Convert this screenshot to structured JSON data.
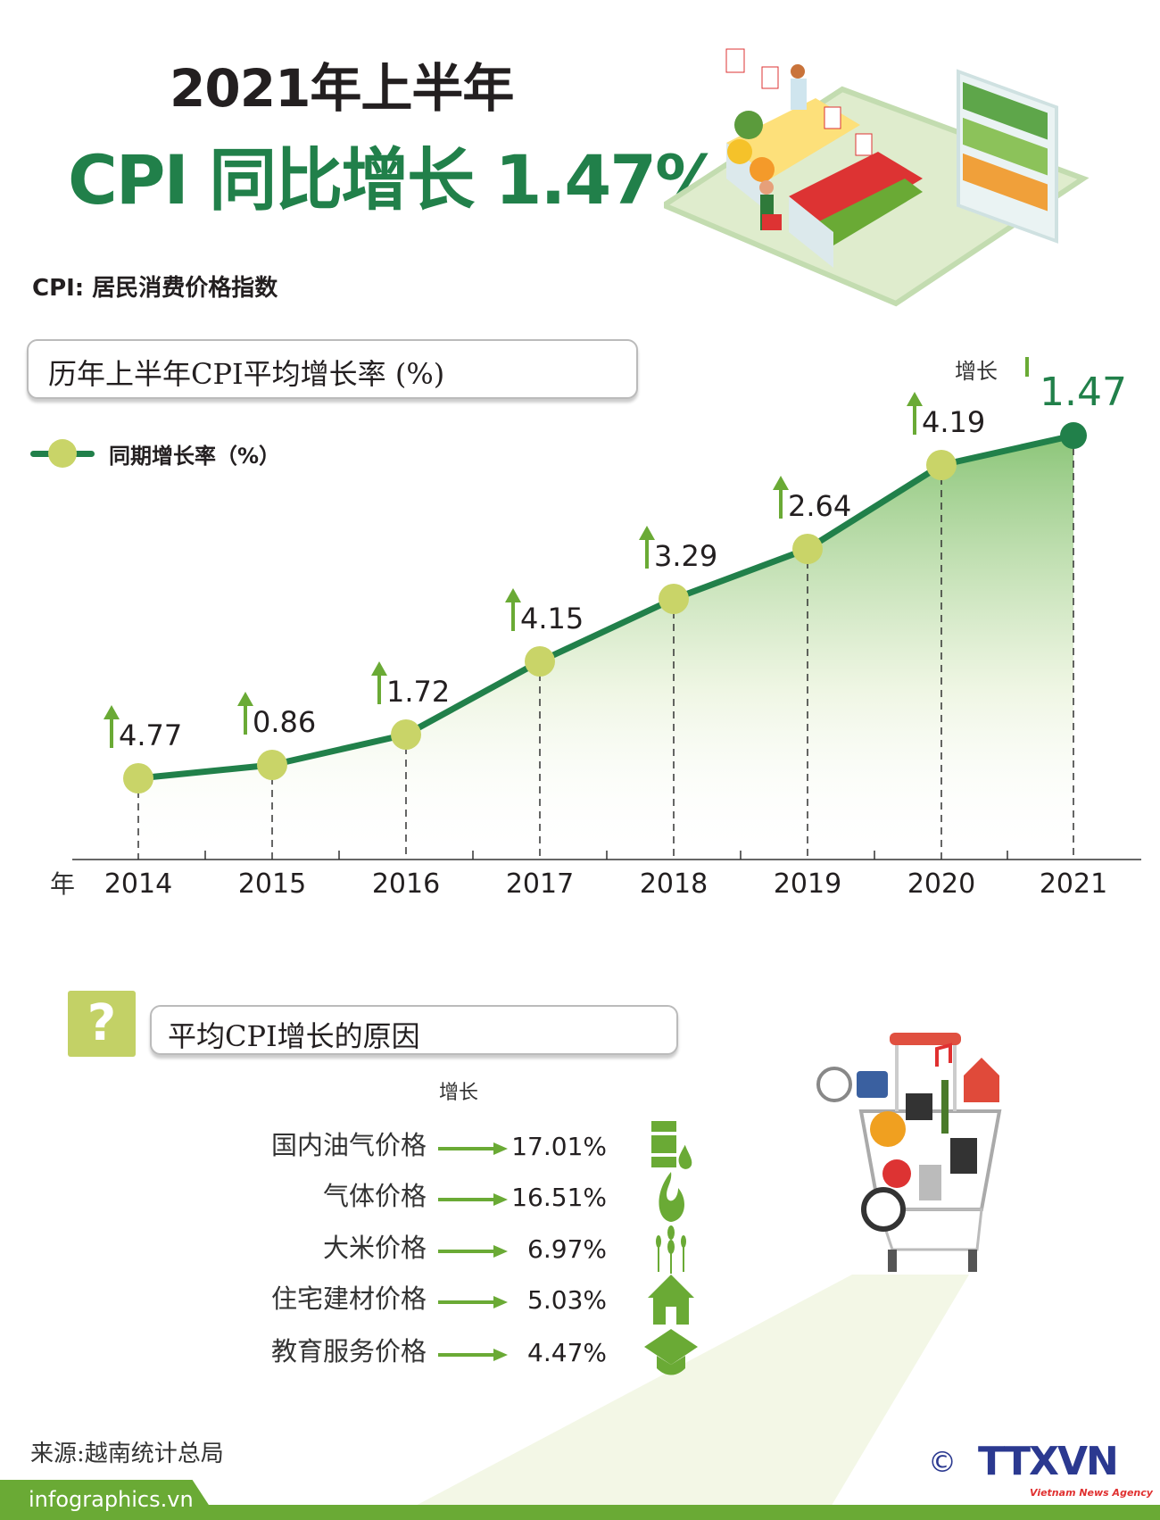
{
  "header": {
    "title_line1": "2021年上半年",
    "title_line2": "CPI 同比增长 1.47%",
    "definition": "CPI: 居民消费价格指数"
  },
  "chart_section": {
    "title": "历年上半年CPI平均增长率 (%)",
    "legend_label": "同期增长率（%）",
    "increase_label": "增长"
  },
  "chart_data": {
    "type": "line",
    "title": "历年上半年CPI平均增长率 (%)",
    "xlabel": "年",
    "categories": [
      "2014",
      "2015",
      "2016",
      "2017",
      "2018",
      "2019",
      "2020",
      "2021"
    ],
    "series": [
      {
        "name": "同期增长率（%）",
        "values": [
          4.77,
          0.86,
          1.72,
          4.15,
          3.29,
          2.64,
          4.19,
          1.47
        ]
      }
    ],
    "value_labels": [
      "4.77",
      "0.86",
      "1.72",
      "4.15",
      "3.29",
      "2.64",
      "4.19",
      "1.47"
    ],
    "legend": "top-left",
    "grid": false,
    "colors": {
      "line": "#21804a",
      "marker": "#c9d468",
      "highlight": "#21804a",
      "arrow": "#6aaa35"
    }
  },
  "reasons": {
    "title": "平均CPI增长的原因",
    "question_icon": "?",
    "increase_label": "增长",
    "items": [
      {
        "label": "国内油气价格",
        "value": "17.01%",
        "icon": "oil-barrel-icon"
      },
      {
        "label": "气体价格",
        "value": "16.51%",
        "icon": "flame-icon"
      },
      {
        "label": "大米价格",
        "value": "6.97%",
        "icon": "rice-icon"
      },
      {
        "label": "住宅建材价格",
        "value": "5.03%",
        "icon": "house-icon"
      },
      {
        "label": "教育服务价格",
        "value": "4.47%",
        "icon": "graduation-cap-icon"
      }
    ]
  },
  "footer": {
    "source": "来源:越南统计总局",
    "site": "infographics.vn",
    "logo": "TTXVN",
    "logo_sub": "Vietnam News Agency",
    "copyright": "©"
  }
}
